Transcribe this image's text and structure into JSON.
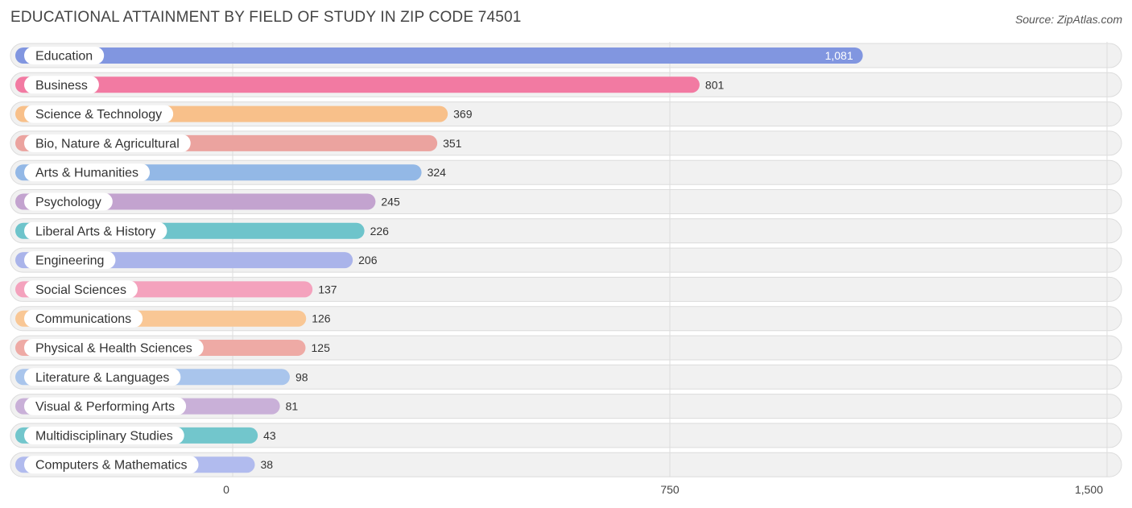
{
  "title": "EDUCATIONAL ATTAINMENT BY FIELD OF STUDY IN ZIP CODE 74501",
  "source": "Source: ZipAtlas.com",
  "chart_data": {
    "type": "bar",
    "orientation": "horizontal",
    "title": "EDUCATIONAL ATTAINMENT BY FIELD OF STUDY IN ZIP CODE 74501",
    "categories": [
      "Education",
      "Business",
      "Science & Technology",
      "Bio, Nature & Agricultural",
      "Arts & Humanities",
      "Psychology",
      "Liberal Arts & History",
      "Engineering",
      "Social Sciences",
      "Communications",
      "Physical & Health Sciences",
      "Literature & Languages",
      "Visual & Performing Arts",
      "Multidisciplinary Studies",
      "Computers & Mathematics"
    ],
    "values": [
      1081,
      801,
      369,
      351,
      324,
      245,
      226,
      206,
      137,
      126,
      125,
      98,
      81,
      43,
      38
    ],
    "value_labels": [
      "1,081",
      "801",
      "369",
      "351",
      "324",
      "245",
      "226",
      "206",
      "137",
      "126",
      "125",
      "98",
      "81",
      "43",
      "38"
    ],
    "colors": [
      "#8196e0",
      "#f27aa2",
      "#f8c08a",
      "#eba39f",
      "#93b8e6",
      "#c3a3cf",
      "#6ec4cb",
      "#aab4ea",
      "#f4a2bd",
      "#f9c795",
      "#eeaaa5",
      "#a9c5ec",
      "#c9b0d8",
      "#72c6cc",
      "#b1bbee"
    ],
    "xlim": [
      0,
      1500
    ],
    "xticks": [
      0,
      750,
      1500
    ],
    "xtick_labels": [
      "0",
      "750",
      "1,500"
    ],
    "grid": true,
    "legend": "none"
  }
}
